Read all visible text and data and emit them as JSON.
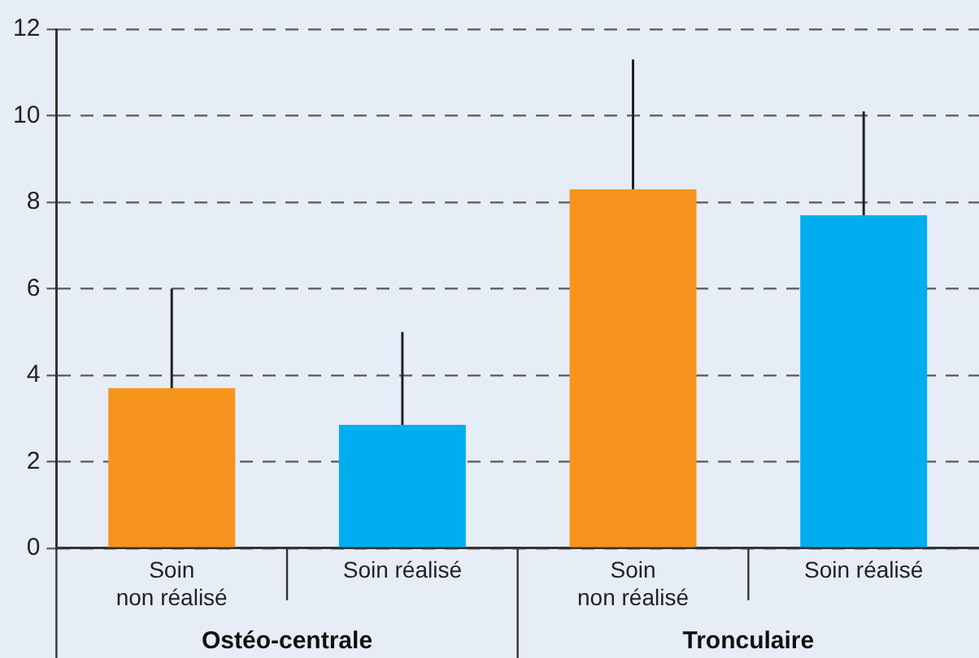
{
  "chart_data": {
    "type": "bar",
    "categories": [
      "Soin\nnon réalisé",
      "Soin réalisé",
      "Soin\nnon réalisé",
      "Soin réalisé"
    ],
    "values": [
      3.7,
      2.85,
      8.3,
      7.7
    ],
    "colors": [
      "#f7941d",
      "#00aeef",
      "#f7941d",
      "#00aeef"
    ],
    "errors": [
      [
        3.7,
        6.0
      ],
      [
        2.85,
        5.0
      ],
      [
        8.3,
        11.3
      ],
      [
        7.7,
        10.1
      ]
    ],
    "ylim": [
      0,
      12
    ],
    "yticks": [
      0,
      2,
      4,
      6,
      8,
      10,
      12
    ],
    "grid": "y",
    "legend": false,
    "annotations": [
      "Ostéo-centrale",
      "Tronculaire"
    ]
  }
}
